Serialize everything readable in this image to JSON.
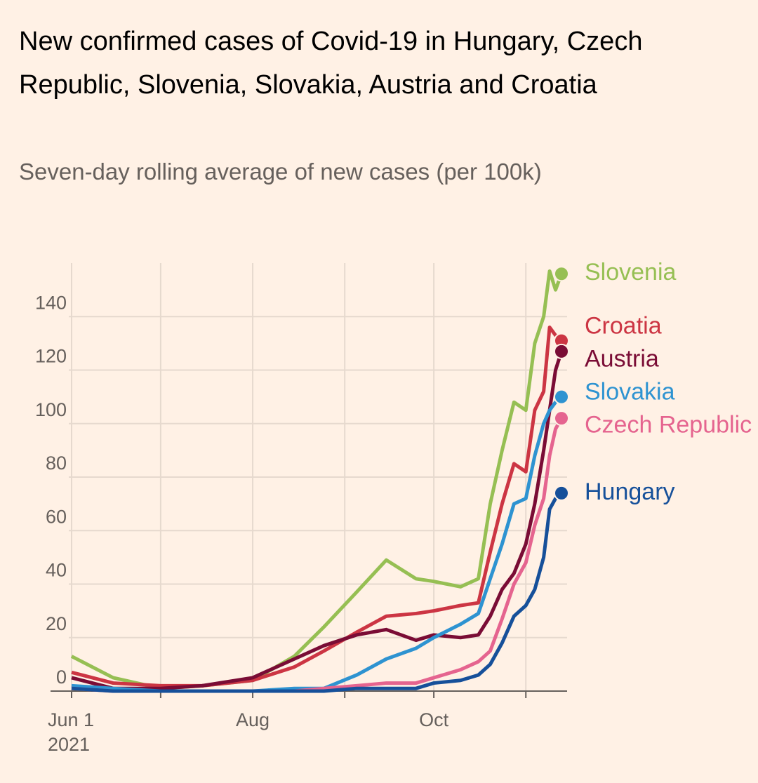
{
  "chart_data": {
    "type": "line",
    "title": "New confirmed cases of Covid-19 in Hungary, Czech Republic, Slovenia, Slovakia, Austria and Croatia",
    "subtitle": "Seven-day rolling average of new cases (per 100k)",
    "x": [
      "2021-06-01",
      "2021-06-15",
      "2021-07-01",
      "2021-07-15",
      "2021-08-01",
      "2021-08-15",
      "2021-08-25",
      "2021-09-05",
      "2021-09-15",
      "2021-09-25",
      "2021-10-01",
      "2021-10-10",
      "2021-10-16",
      "2021-10-20",
      "2021-10-24",
      "2021-10-28",
      "2021-11-01",
      "2021-11-04",
      "2021-11-07",
      "2021-11-09",
      "2021-11-11",
      "2021-11-13"
    ],
    "xlim": [
      "2021-06-01",
      "2021-11-13"
    ],
    "xticks": [
      {
        "value": "2021-06-01",
        "label": "Jun 1"
      },
      {
        "value": "2021-07-01",
        "label": null
      },
      {
        "value": "2021-08-01",
        "label": "Aug"
      },
      {
        "value": "2021-09-01",
        "label": null
      },
      {
        "value": "2021-10-01",
        "label": "Oct"
      },
      {
        "value": "2021-11-01",
        "label": null
      }
    ],
    "x_year_label": "2021",
    "ylim": [
      0,
      160
    ],
    "yticks": [
      0,
      20,
      40,
      60,
      80,
      100,
      120,
      140
    ],
    "grid": true,
    "series": [
      {
        "name": "Slovenia",
        "color": "#96bf53",
        "values": [
          13,
          5,
          1,
          2,
          4,
          13,
          24,
          37,
          49,
          42,
          41,
          39,
          42,
          70,
          90,
          108,
          105,
          130,
          140,
          157,
          150,
          156
        ]
      },
      {
        "name": "Croatia",
        "color": "#cc3543",
        "values": [
          7,
          3,
          2,
          2,
          4,
          9,
          15,
          22,
          28,
          29,
          30,
          32,
          33,
          52,
          70,
          85,
          82,
          105,
          112,
          136,
          133,
          131
        ]
      },
      {
        "name": "Austria",
        "color": "#7a0c35",
        "values": [
          5,
          1,
          1,
          2,
          5,
          12,
          17,
          21,
          23,
          19,
          21,
          20,
          21,
          28,
          38,
          44,
          55,
          70,
          90,
          105,
          120,
          127
        ]
      },
      {
        "name": "Slovakia",
        "color": "#2e93d1",
        "values": [
          2,
          1,
          0,
          0,
          0,
          1,
          1,
          6,
          12,
          16,
          20,
          25,
          29,
          42,
          55,
          70,
          72,
          88,
          100,
          105,
          108,
          110
        ]
      },
      {
        "name": "Czech Republic",
        "color": "#e5648f",
        "values": [
          1,
          0,
          0,
          0,
          0,
          0,
          1,
          2,
          3,
          3,
          5,
          8,
          11,
          15,
          27,
          40,
          48,
          62,
          72,
          88,
          98,
          102
        ]
      },
      {
        "name": "Hungary",
        "color": "#16509a",
        "values": [
          1,
          0,
          0,
          0,
          0,
          0,
          0,
          1,
          1,
          1,
          3,
          4,
          6,
          10,
          18,
          28,
          32,
          38,
          50,
          68,
          72,
          74
        ]
      }
    ]
  }
}
